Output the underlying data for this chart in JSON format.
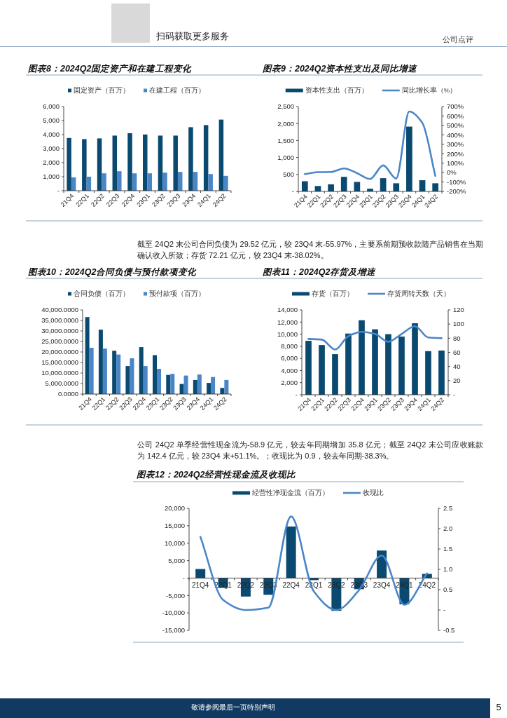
{
  "chart_data": [
    {
      "type": "other",
      "annotations": [
        "扫码获取更多服务",
        "公司点评"
      ]
    },
    {
      "type": "bar",
      "title": "图表8：2024Q2固定资产和在建工程变化",
      "categories": [
        "21Q4",
        "22Q1",
        "22Q2",
        "22Q3",
        "22Q4",
        "23Q1",
        "23Q2",
        "23Q3",
        "23Q4",
        "24Q1",
        "24Q2"
      ],
      "series": [
        {
          "name": "固定资产（百万）",
          "color": "#0b4a70",
          "values": [
            3760,
            3680,
            3730,
            3930,
            4100,
            4010,
            3930,
            3930,
            4530,
            4680,
            5070
          ]
        },
        {
          "name": "在建工程（百万）",
          "color": "#4a86c6",
          "values": [
            950,
            1000,
            1240,
            1390,
            1240,
            1240,
            1290,
            1340,
            1340,
            1190,
            1060
          ]
        }
      ],
      "ylim": [
        0,
        6000
      ],
      "yticks": [
        {
          "value": 0,
          "label": "-"
        },
        {
          "value": 1000,
          "label": "1,000"
        },
        {
          "value": 2000,
          "label": "2,000"
        },
        {
          "value": 3000,
          "label": "3,000"
        },
        {
          "value": 4000,
          "label": "4,000"
        },
        {
          "value": 5000,
          "label": "5,000"
        },
        {
          "value": 6000,
          "label": "6,000"
        }
      ],
      "legend": "top"
    },
    {
      "type": "bar",
      "title": "图表9：2024Q2资本性支出及同比增速",
      "categories": [
        "21Q4",
        "22Q1",
        "22Q2",
        "22Q3",
        "22Q4",
        "23Q1",
        "23Q2",
        "23Q3",
        "23Q4",
        "24Q1",
        "24Q2"
      ],
      "series": [
        {
          "name": "资本性支出（百万）",
          "color": "#0b4a70",
          "values": [
            300,
            160,
            210,
            430,
            280,
            80,
            390,
            240,
            1910,
            330,
            240
          ]
        },
        {
          "name": "同比增长率（%）",
          "type": "line",
          "axis": "y2",
          "color": "#4a86c8",
          "values": [
            -16,
            4,
            6,
            44,
            -6,
            -68,
            76,
            -63,
            648,
            528,
            -36
          ]
        }
      ],
      "ylim": [
        0,
        2500
      ],
      "yticks": [
        {
          "value": 0,
          "label": "-"
        },
        500,
        {
          "value": 1000,
          "label": "1,000"
        },
        {
          "value": 1500,
          "label": "1,500"
        },
        {
          "value": 2000,
          "label": "2,000"
        },
        {
          "value": 2500,
          "label": "2,500"
        }
      ],
      "y2lim": [
        -200,
        700
      ],
      "y2ticks": [
        {
          "value": -200,
          "label": "-200%"
        },
        {
          "value": -100,
          "label": "-100%"
        },
        {
          "value": 0,
          "label": "0%"
        },
        {
          "value": 100,
          "label": "100%"
        },
        {
          "value": 200,
          "label": "200%"
        },
        {
          "value": 300,
          "label": "300%"
        },
        {
          "value": 400,
          "label": "400%"
        },
        {
          "value": 500,
          "label": "500%"
        },
        {
          "value": 600,
          "label": "600%"
        },
        {
          "value": 700,
          "label": "700%"
        }
      ],
      "legend": "top"
    },
    {
      "type": "other",
      "annotations": [
        "截至 24Q2 末公司合同负债为 29.52 亿元，较 23Q4 末-55.97%，主要系前期预收款随产品销售在当期确认收入所致；存货 72.21 亿元，较 23Q4 末-38.02%。"
      ]
    },
    {
      "type": "bar",
      "title": "图表10：2024Q2合同负债与预付款项变化",
      "categories": [
        "21Q4",
        "22Q1",
        "22Q2",
        "22Q3",
        "22Q4",
        "23Q1",
        "23Q2",
        "23Q3",
        "23Q4",
        "24Q1",
        "24Q2"
      ],
      "series": [
        {
          "name": "合同负债（百万）",
          "color": "#0b4a70",
          "values": [
            36600,
            30600,
            20600,
            13300,
            22300,
            18500,
            9100,
            4800,
            6700,
            5300,
            2900
          ]
        },
        {
          "name": "预付款项（百万）",
          "color": "#4a86c6",
          "values": [
            22000,
            21600,
            18800,
            17000,
            13300,
            12000,
            9600,
            8800,
            9300,
            8100,
            6700
          ]
        }
      ],
      "ylim": [
        0,
        40000
      ],
      "yticks": [
        {
          "value": 0,
          "label": "0.0000"
        },
        {
          "value": 5000,
          "label": "5,000.0000"
        },
        {
          "value": 10000,
          "label": "10,000.0000"
        },
        {
          "value": 15000,
          "label": "15,000.0000"
        },
        {
          "value": 20000,
          "label": "20,000.0000"
        },
        {
          "value": 25000,
          "label": "25,000.0000"
        },
        {
          "value": 30000,
          "label": "30,000.0000"
        },
        {
          "value": 35000,
          "label": "35,000.0000"
        },
        {
          "value": 40000,
          "label": "40,000.0000"
        }
      ],
      "legend": "top"
    },
    {
      "type": "bar",
      "title": "图表11：2024Q2存货及增速",
      "categories": [
        "21Q4",
        "22Q1",
        "22Q2",
        "22Q3",
        "22Q4",
        "23Q1",
        "23Q2",
        "23Q3",
        "23Q4",
        "24Q1",
        "24Q2"
      ],
      "series": [
        {
          "name": "存货（百万）",
          "color": "#0b4a70",
          "values": [
            8900,
            8200,
            6700,
            10100,
            12300,
            10800,
            10000,
            9600,
            11800,
            7200,
            7300
          ]
        },
        {
          "name": "存货周转天数（天）",
          "type": "line",
          "axis": "y2",
          "color": "#4a86c8",
          "values": [
            79,
            78,
            64,
            83,
            89,
            86,
            75,
            86,
            97,
            81,
            80
          ]
        }
      ],
      "ylim": [
        0,
        14000
      ],
      "yticks": [
        {
          "value": 0,
          "label": "-"
        },
        {
          "value": 2000,
          "label": "2,000"
        },
        {
          "value": 4000,
          "label": "4,000"
        },
        {
          "value": 6000,
          "label": "6,000"
        },
        {
          "value": 8000,
          "label": "8,000"
        },
        {
          "value": 10000,
          "label": "10,000"
        },
        {
          "value": 12000,
          "label": "12,000"
        },
        {
          "value": 14000,
          "label": "14,000"
        }
      ],
      "y2lim": [
        0,
        120
      ],
      "y2ticks": [
        {
          "value": 0,
          "label": "-"
        },
        20,
        40,
        60,
        80,
        100,
        120
      ],
      "legend": "top"
    },
    {
      "type": "other",
      "annotations": [
        "公司 24Q2 单季经营性现金流为-58.9 亿元，较去年同期增加 35.8 亿元；截至 24Q2 末公司应收账款为 142.4 亿元，较 23Q4 末+51.1%。；收现比为 0.9，较去年同期-38.3%。"
      ]
    },
    {
      "type": "bar",
      "title": "图表12：2024Q2经营性现金流及收现比",
      "categories": [
        "21Q4",
        "22Q1",
        "22Q2",
        "22Q3",
        "22Q4",
        "23Q1",
        "23Q2",
        "23Q3",
        "23Q4",
        "24Q1",
        "24Q2"
      ],
      "series": [
        {
          "name": "经营性净现金流（百万）",
          "color": "#0b4a70",
          "values": [
            2600,
            -2800,
            -5300,
            -4800,
            14800,
            -600,
            -9400,
            -3200,
            7900,
            -7500,
            1200
          ]
        },
        {
          "name": "收现比",
          "type": "line",
          "axis": "y2",
          "color": "#4a86c8",
          "values": [
            1.8,
            0.25,
            0.0,
            0.06,
            2.3,
            0.46,
            0.0,
            0.49,
            1.34,
            0.13,
            0.9
          ]
        }
      ],
      "ylim": [
        -15000,
        20000
      ],
      "yticks": [
        {
          "value": -15000,
          "label": "-15,000"
        },
        {
          "value": -10000,
          "label": "-10,000"
        },
        {
          "value": -5000,
          "label": "-5,000"
        },
        {
          "value": 0,
          "label": "-"
        },
        {
          "value": 5000,
          "label": "5,000"
        },
        {
          "value": 10000,
          "label": "10,000"
        },
        {
          "value": 15000,
          "label": "15,000"
        },
        {
          "value": 20000,
          "label": "20,000"
        }
      ],
      "y2lim": [
        -0.5,
        2.5
      ],
      "y2ticks": [
        -0.5,
        {
          "value": 0,
          "label": "-"
        },
        0.5,
        {
          "value": 1,
          "label": "1.0"
        },
        1.5,
        {
          "value": 2,
          "label": "2.0"
        },
        2.5
      ],
      "legend": "top"
    },
    {
      "type": "other",
      "annotations": [
        "敬请参阅最后一页特别声明",
        "5"
      ]
    }
  ]
}
